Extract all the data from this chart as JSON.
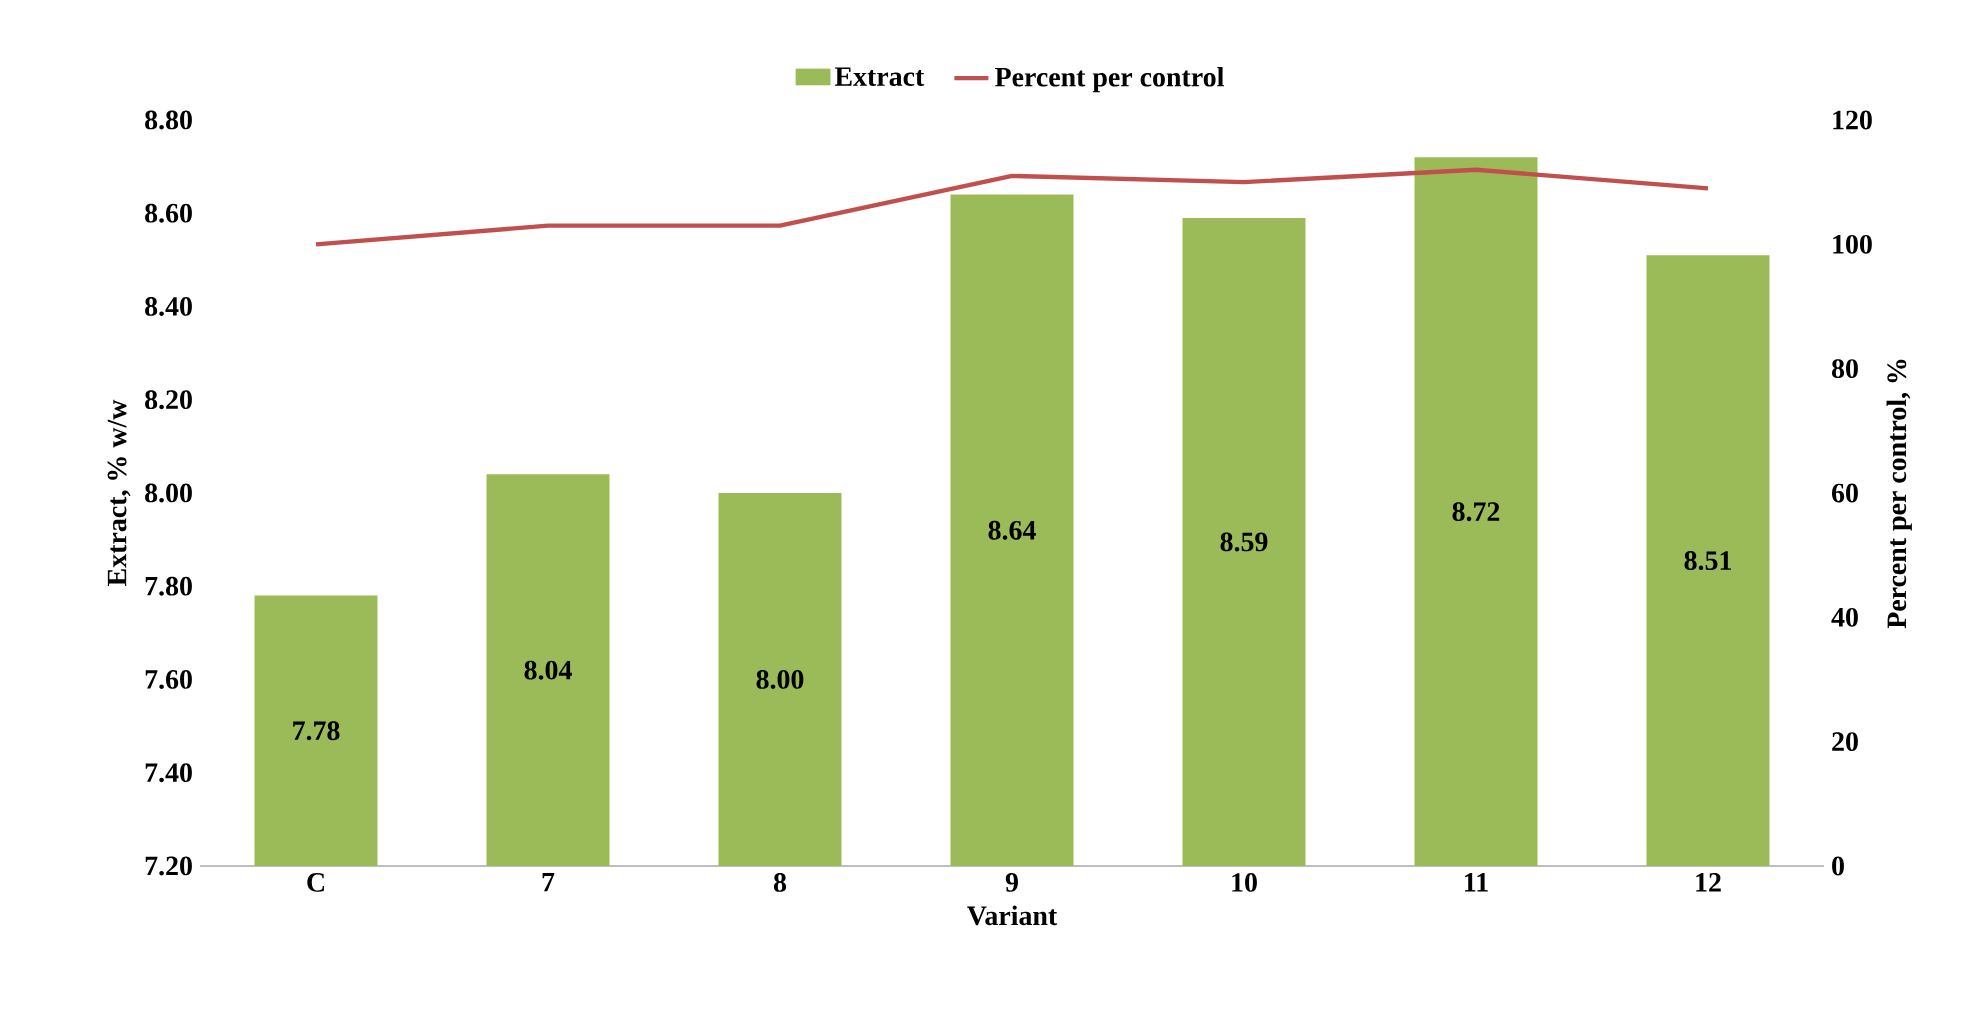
{
  "chart_data": {
    "type": "bar",
    "xlabel": "Variant",
    "ylabel": "Extract, % w/w",
    "y2label": "Percent per control, %",
    "categories": [
      "C",
      "7",
      "8",
      "9",
      "10",
      "11",
      "12"
    ],
    "series": [
      {
        "name": "Extract",
        "color": "#9bbb59",
        "values": [
          7.78,
          8.04,
          8.0,
          8.64,
          8.59,
          8.72,
          8.51
        ],
        "value_labels": [
          "7.78",
          "8.04",
          "8.00",
          "8.64",
          "8.59",
          "8.72",
          "8.51"
        ]
      },
      {
        "name": "Percent per control",
        "type": "line",
        "axis": "y2",
        "color": "#c0504d",
        "values": [
          100,
          103,
          103,
          111,
          110,
          112,
          109
        ]
      }
    ],
    "ylim": [
      7.2,
      8.8
    ],
    "yticks": [
      {
        "value": 7.2,
        "label": "7.20"
      },
      {
        "value": 7.4,
        "label": "7.40"
      },
      {
        "value": 7.6,
        "label": "7.60"
      },
      {
        "value": 7.8,
        "label": "7.80"
      },
      {
        "value": 8.0,
        "label": "8.00"
      },
      {
        "value": 8.2,
        "label": "8.20"
      },
      {
        "value": 8.4,
        "label": "8.40"
      },
      {
        "value": 8.6,
        "label": "8.60"
      },
      {
        "value": 8.8,
        "label": "8.80"
      }
    ],
    "y2lim": [
      0,
      120
    ],
    "y2ticks": [
      0,
      20,
      40,
      60,
      80,
      100,
      120
    ],
    "legend": "top",
    "grid": false,
    "marker": "none",
    "line_style": "solid"
  }
}
